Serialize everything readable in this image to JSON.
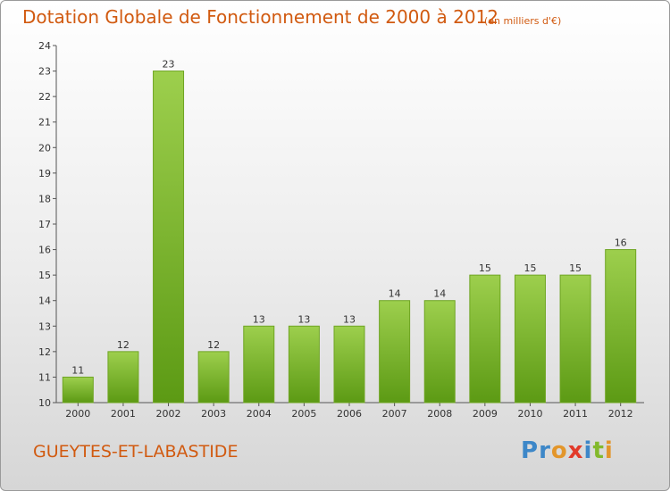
{
  "header": {
    "title": "Dotation Globale de Fonctionnement de 2000 à 2012",
    "subtitle": "(en milliers d'€)"
  },
  "footer": {
    "place": "GUEYTES-ET-LABASTIDE",
    "logo_text": "Proxiti",
    "logo_letters": [
      {
        "char": "P",
        "color": "#3d87c8"
      },
      {
        "char": "r",
        "color": "#3d87c8"
      },
      {
        "char": "o",
        "color": "#e3962b"
      },
      {
        "char": "x",
        "color": "#e23a2a"
      },
      {
        "char": "i",
        "color": "#3d87c8"
      },
      {
        "char": "t",
        "color": "#83b92c"
      },
      {
        "char": "i",
        "color": "#e3962b"
      }
    ]
  },
  "chart_data": {
    "type": "bar",
    "title": "Dotation Globale de Fonctionnement de 2000 à 2012",
    "subtitle": "(en milliers d'€)",
    "categories": [
      "2000",
      "2001",
      "2002",
      "2003",
      "2004",
      "2005",
      "2006",
      "2007",
      "2008",
      "2009",
      "2010",
      "2011",
      "2012"
    ],
    "values": [
      11,
      12,
      23,
      12,
      13,
      13,
      13,
      14,
      14,
      15,
      15,
      15,
      16
    ],
    "data_labels": [
      "11",
      "12",
      "23",
      "12",
      "13",
      "13",
      "13",
      "14",
      "14",
      "15",
      "15",
      "15",
      "16"
    ],
    "ylim": [
      10,
      24
    ],
    "yticks": [
      "10",
      "11",
      "12",
      "13",
      "14",
      "15",
      "16",
      "17",
      "18",
      "19",
      "20",
      "21",
      "22",
      "23",
      "24"
    ],
    "grid": false,
    "legend": "none",
    "colors": {
      "bar_top": "#9dcf4d",
      "bar_bottom": "#5c9a14",
      "bar_stroke": "#6fa523",
      "axis": "#555555",
      "text": "#333333",
      "accent": "#d15a10"
    }
  }
}
